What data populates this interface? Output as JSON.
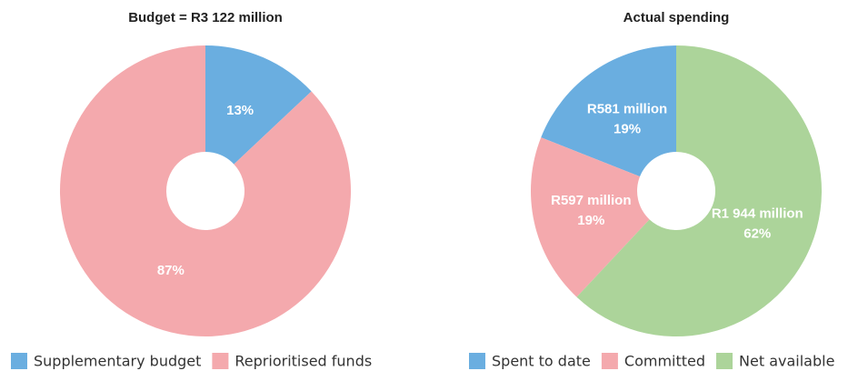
{
  "chart_data": [
    {
      "type": "donut",
      "title": "Budget = R3 122 million",
      "direction": "clockwise",
      "categories": [
        "Supplementary budget",
        "Reprioritised funds"
      ],
      "values": [
        13,
        87
      ],
      "value_labels": [
        "13%",
        "87%"
      ],
      "colors": [
        "#6aaee0",
        "#f4a9ad"
      ]
    },
    {
      "type": "donut",
      "title": "Actual spending",
      "direction": "counterclockwise",
      "categories": [
        "Spent to date",
        "Committed",
        "Net available"
      ],
      "values": [
        19,
        19,
        62
      ],
      "value_labels": [
        "19%",
        "19%",
        "62%"
      ],
      "amount_labels": [
        "R581 million",
        "R597 million",
        "R1 944 million"
      ],
      "colors": [
        "#6aaee0",
        "#f4a9ad",
        "#acd49a"
      ]
    }
  ]
}
